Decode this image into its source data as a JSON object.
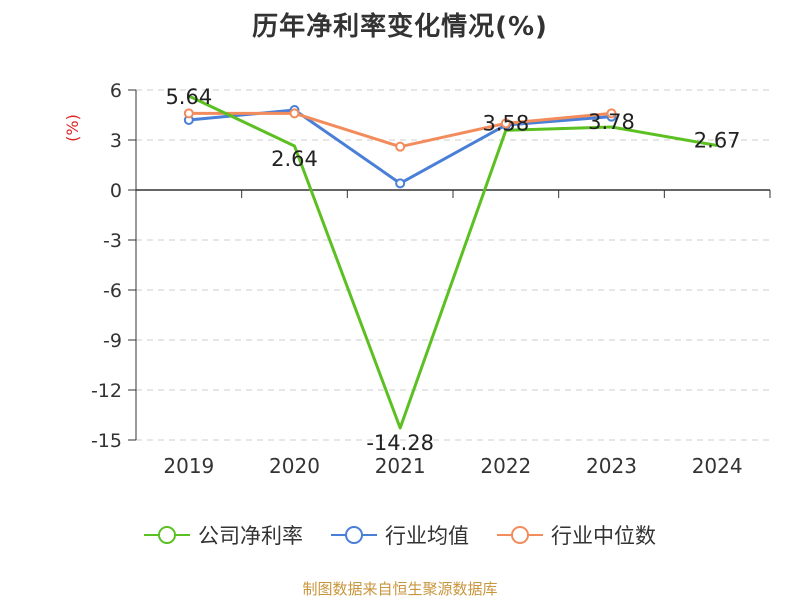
{
  "title": "历年净利率变化情况(%)",
  "source": "制图数据来自恒生聚源数据库",
  "colors": {
    "company": "#5cc022",
    "avg": "#4a7fd8",
    "median": "#f28c5c"
  },
  "chart_data": {
    "type": "line",
    "title": "历年净利率变化情况(%)",
    "ylabel": "(%)",
    "ylim": [
      -15,
      6
    ],
    "yticks": [
      6,
      3,
      0,
      -3,
      -6,
      -9,
      -12,
      -15
    ],
    "categories": [
      "2019",
      "2020",
      "2021",
      "2022",
      "2023",
      "2024"
    ],
    "legend_position": "bottom",
    "grid": true,
    "series": [
      {
        "name": "公司净利率",
        "values": [
          5.64,
          2.64,
          -14.28,
          3.58,
          3.78,
          2.67
        ],
        "labels": [
          "5.64",
          "2.64",
          "-14.28",
          "3.58",
          "3.78",
          "2.67"
        ]
      },
      {
        "name": "行业均值",
        "values": [
          4.2,
          4.8,
          0.4,
          3.9,
          4.4,
          null
        ]
      },
      {
        "name": "行业中位数",
        "values": [
          4.6,
          4.6,
          2.6,
          4.0,
          4.6,
          null
        ]
      }
    ]
  }
}
